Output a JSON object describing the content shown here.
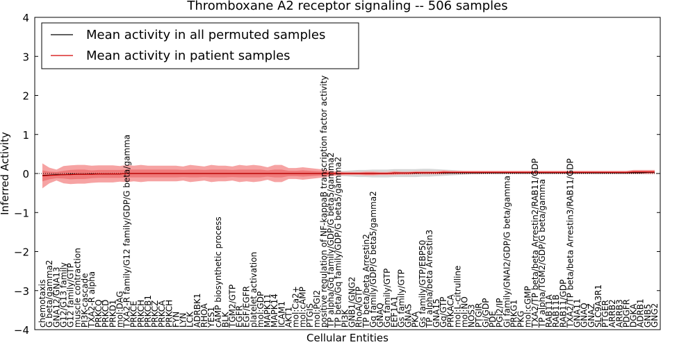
{
  "chart_data": {
    "type": "line",
    "title": "Thromboxane A2 receptor signaling -- 506 samples",
    "xlabel": "Cellular Entities",
    "ylabel": "Inferred Activity",
    "ylim": [
      -4,
      4
    ],
    "yticks": [
      4,
      3,
      2,
      1,
      0,
      -1,
      -2,
      -3,
      -4
    ],
    "ytick_labels": [
      "4",
      "3",
      "2",
      "1",
      "0",
      "−1",
      "−2",
      "−3",
      "−4"
    ],
    "xlim": [
      0,
      88
    ],
    "grid": false,
    "legend_position": "top-left",
    "reference_line": {
      "y": 0,
      "style": "dotted"
    },
    "categories": [
      "chemotaxis",
      "G beta/gamma2",
      "GNA12/GNA13",
      "G12/G13 family",
      "G12 family/GTP",
      "muscle contraction",
      "PI3K-cascade",
      "TXA2-R alpha",
      "PRKCQ",
      "PRKCD",
      "PRKD1",
      "mol:DAG",
      "TXA2-R family/G12 family/GDP/G beta/gamma",
      "PRKCE",
      "PRKCH",
      "PRKCB1",
      "PRKCZ",
      "PRKCA",
      "PRKCH",
      "FYN",
      "LYN",
      "LCK",
      "ADRBK1",
      "RHOA",
      "YES1",
      "cAMP biosynthetic process",
      "BLK",
      "TGM2/GTP",
      "EGFR",
      "EGF/EGFR",
      "platelet activation",
      "mol:GDP",
      "MAPK11",
      "MAPK14",
      "ICAM1",
      "AKT1",
      "mol:Ca2+",
      "mol:cAMP",
      "PTGIS",
      "mol:PGI2",
      "positive regulation of NF-kappaB transcription factor activity",
      "TP alpha/Gq family/GDP/G beta5/gamma2",
      "TP beta/Gq family/GDP/G beta5/gamma2",
      "PI3K",
      "GNB1/GNG2",
      "RhoA/GTP",
      "TP beta/beta Arrestin2",
      "Gq family/GDP/G beta5/gamma2",
      "GNAQ",
      "Gq family/GTP",
      "EEF1A1",
      "Gs family/GTP",
      "GNAS",
      "PKA",
      "Gs family/GTP/EBP50",
      "TP alpha/beta Arrestin3",
      "GNA15",
      "Gq/GTP",
      "PRKACA",
      "mol:L-citrulline",
      "mol:NO",
      "NOS3",
      "PTGIR",
      "Gi/GDP",
      "PDE",
      "PGI2/IP",
      "Gi family/GNAI2/GDP/G beta/gamma",
      "PRKG1",
      "PKG",
      "mol:cGMP",
      "TXA2/TP beta/beta Arrestin2/RAB11/GDP",
      "TP alpha/TGM2/GDP/G beta/gamma",
      "RAB11A",
      "RAB11B",
      "RAB11/GDP",
      "TXA2/TP beta/beta Arrestin3/RAB11/GDP",
      "GNA11",
      "GNAQ",
      "GNAZ",
      "SLC9A3R1",
      "PTGER",
      "ARRB2",
      "ARRB3",
      "PDGFR",
      "DGKA",
      "ADRB1",
      "GNB5",
      "GNG2"
    ],
    "series": [
      {
        "name": "Mean activity in all permuted samples",
        "color": "#000000",
        "values": [
          -0.05,
          -0.04,
          -0.03,
          -0.03,
          -0.02,
          -0.02,
          -0.02,
          -0.01,
          -0.01,
          -0.01,
          -0.01,
          -0.01,
          0,
          0,
          0,
          0,
          0,
          0,
          0,
          0,
          0,
          0,
          0,
          0,
          0,
          0,
          0,
          0,
          0,
          0,
          0,
          0,
          0,
          0,
          0,
          0,
          0,
          0,
          0,
          0,
          0,
          0,
          0,
          0,
          0,
          0,
          0,
          0,
          0,
          0,
          0.01,
          0.01,
          0.01,
          0.01,
          0.02,
          0.02,
          0.02,
          0.02,
          0.02,
          0.02,
          0.02,
          0.02,
          0.02,
          0.02,
          0.02,
          0.02,
          0.02,
          0.02,
          0.02,
          0.02,
          0.02,
          0.02,
          0.02,
          0.02,
          0.02,
          0.02,
          0.02,
          0.02,
          0.02,
          0.02,
          0.02,
          0.02,
          0.02,
          0.02,
          0.02,
          0.02,
          0.03,
          0.03
        ]
      },
      {
        "name": "Mean activity in patient samples",
        "color": "#d40000",
        "values": [
          -0.06,
          -0.05,
          -0.04,
          -0.03,
          -0.03,
          -0.02,
          -0.02,
          -0.02,
          -0.01,
          -0.01,
          -0.01,
          -0.01,
          0,
          0,
          0,
          0,
          0,
          0,
          0,
          0,
          0,
          0,
          0,
          0,
          0,
          0,
          0,
          0,
          0,
          0,
          0,
          0,
          0,
          0,
          0,
          0,
          0,
          0,
          0,
          0,
          0,
          0,
          0,
          0,
          0,
          0,
          0,
          0,
          0,
          0,
          0.01,
          0.01,
          0.01,
          0.02,
          0.02,
          0.02,
          0.02,
          0.03,
          0.03,
          0.03,
          0.03,
          0.03,
          0.03,
          0.03,
          0.03,
          0.03,
          0.03,
          0.03,
          0.03,
          0.03,
          0.03,
          0.03,
          0.03,
          0.03,
          0.03,
          0.03,
          0.03,
          0.03,
          0.03,
          0.03,
          0.03,
          0.03,
          0.03,
          0.03,
          0.04,
          0.04,
          0.04,
          0.04
        ]
      }
    ],
    "patient_band_outer": [
      0.32,
      0.2,
      0.14,
      0.22,
      0.24,
      0.24,
      0.24,
      0.22,
      0.22,
      0.22,
      0.22,
      0.2,
      0.22,
      0.2,
      0.22,
      0.2,
      0.2,
      0.2,
      0.2,
      0.2,
      0.18,
      0.22,
      0.2,
      0.18,
      0.22,
      0.2,
      0.2,
      0.18,
      0.22,
      0.2,
      0.22,
      0.2,
      0.16,
      0.22,
      0.22,
      0.14,
      0.14,
      0.16,
      0.14,
      0.12,
      0.1,
      0.07,
      0.05,
      0.04,
      0.04,
      0.04,
      0.05,
      0.05,
      0.04,
      0.04,
      0.05,
      0.04,
      0.04,
      0.04,
      0.04,
      0.04,
      0.04,
      0.05,
      0.04,
      0.04,
      0.04,
      0.04,
      0.04,
      0.04,
      0.04,
      0.04,
      0.04,
      0.04,
      0.04,
      0.04,
      0.04,
      0.04,
      0.04,
      0.04,
      0.04,
      0.04,
      0.04,
      0.04,
      0.04,
      0.04,
      0.04,
      0.04,
      0.04,
      0.04,
      0.05,
      0.05,
      0.05,
      0.05
    ],
    "patient_band_inner": [
      0.14,
      0.1,
      0.08,
      0.1,
      0.12,
      0.12,
      0.12,
      0.1,
      0.1,
      0.1,
      0.1,
      0.1,
      0.1,
      0.1,
      0.1,
      0.1,
      0.1,
      0.1,
      0.1,
      0.1,
      0.09,
      0.1,
      0.1,
      0.09,
      0.1,
      0.1,
      0.1,
      0.09,
      0.1,
      0.1,
      0.1,
      0.1,
      0.08,
      0.1,
      0.1,
      0.07,
      0.07,
      0.08,
      0.07,
      0.06,
      0.05,
      0.04,
      0.03,
      0.02,
      0.02,
      0.02,
      0.03,
      0.03,
      0.02,
      0.02,
      0.03,
      0.02,
      0.02,
      0.02,
      0.02,
      0.02,
      0.02,
      0.03,
      0.02,
      0.02,
      0.02,
      0.02,
      0.02,
      0.02,
      0.02,
      0.02,
      0.02,
      0.02,
      0.02,
      0.02,
      0.02,
      0.02,
      0.02,
      0.02,
      0.02,
      0.02,
      0.02,
      0.02,
      0.02,
      0.02,
      0.02,
      0.02,
      0.02,
      0.02,
      0.03,
      0.03,
      0.03,
      0.03
    ],
    "permuted_band": [
      0.03,
      0.03,
      0.03,
      0.03,
      0.03,
      0.03,
      0.03,
      0.03,
      0.03,
      0.03,
      0.03,
      0.03,
      0.03,
      0.03,
      0.03,
      0.03,
      0.03,
      0.03,
      0.03,
      0.03,
      0.03,
      0.03,
      0.03,
      0.03,
      0.03,
      0.03,
      0.03,
      0.03,
      0.03,
      0.03,
      0.03,
      0.03,
      0.03,
      0.03,
      0.03,
      0.03,
      0.03,
      0.03,
      0.03,
      0.03,
      0.04,
      0.05,
      0.06,
      0.07,
      0.08,
      0.09,
      0.09,
      0.1,
      0.1,
      0.1,
      0.1,
      0.1,
      0.1,
      0.1,
      0.1,
      0.1,
      0.09,
      0.08,
      0.07,
      0.06,
      0.05,
      0.04,
      0.04,
      0.03,
      0.03,
      0.03,
      0.03,
      0.03,
      0.03,
      0.03,
      0.03,
      0.03,
      0.03,
      0.03,
      0.03,
      0.03,
      0.03,
      0.03,
      0.03,
      0.03,
      0.03,
      0.03,
      0.03,
      0.03,
      0.03,
      0.03,
      0.03,
      0.03
    ],
    "colors": {
      "patient_line": "#d40000",
      "patient_band_outer": "#f6a3a3",
      "patient_band_inner": "#ef7a7a",
      "permuted_band": "#d6d6d6",
      "axis": "#000000"
    }
  }
}
